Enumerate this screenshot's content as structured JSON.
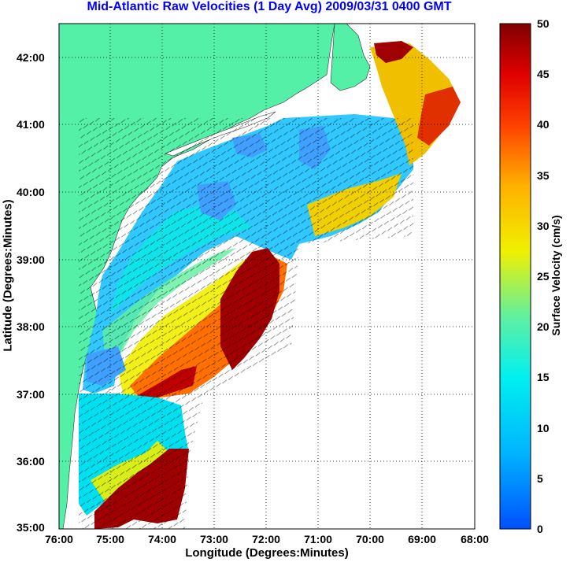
{
  "title": "Mid-Atlantic Raw Velocities (1 Day Avg) 2009/03/31 0400 GMT",
  "xlabel": "Longitude (Degrees:Minutes)",
  "ylabel": "Latitude (Degrees:Minutes)",
  "colorbar_label": "Surface Velocity (cm/s)",
  "x_ticks": [
    "76:00",
    "75:00",
    "74:00",
    "73:00",
    "72:00",
    "71:00",
    "70:00",
    "69:00",
    "68:00"
  ],
  "y_ticks": [
    "42:00",
    "41:00",
    "40:00",
    "39:00",
    "38:00",
    "37:00",
    "36:00",
    "35:00"
  ],
  "colorbar_ticks": [
    "50",
    "45",
    "40",
    "35",
    "30",
    "25",
    "20",
    "15",
    "10",
    "5",
    "0"
  ],
  "colors": {
    "land": "#55f0a8",
    "title": "#0000ff"
  },
  "chart_data": {
    "type": "heatmap",
    "title": "Mid-Atlantic Raw Velocities (1 Day Avg) 2009/03/31 0400 GMT",
    "xlabel": "Longitude (Degrees:Minutes)",
    "ylabel": "Latitude (Degrees:Minutes)",
    "xlim": [
      -76,
      -68
    ],
    "ylim": [
      35,
      42.5
    ],
    "colorbar": {
      "label": "Surface Velocity (cm/s)",
      "range": [
        0,
        50
      ],
      "colormap": "jet"
    },
    "grid": true
  }
}
